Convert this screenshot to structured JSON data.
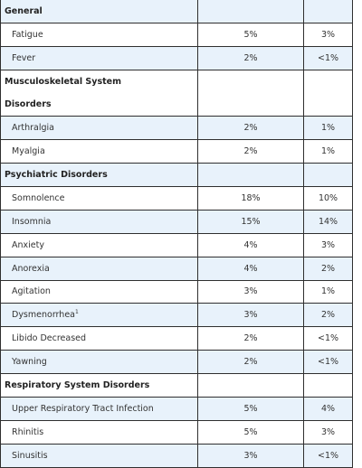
{
  "table": {
    "rows": [
      {
        "type": "section",
        "label": "General",
        "alt": true
      },
      {
        "type": "item",
        "label": "Fatigue",
        "drug": "5%",
        "placebo": "3%",
        "alt": false
      },
      {
        "type": "item",
        "label": "Fever",
        "drug": "2%",
        "placebo": "<1%",
        "alt": true
      },
      {
        "type": "section",
        "label": "Musculoskeletal System Disorders",
        "alt": false,
        "tall": true
      },
      {
        "type": "item",
        "label": "Arthralgia",
        "drug": "2%",
        "placebo": "1%",
        "alt": true
      },
      {
        "type": "item",
        "label": "Myalgia",
        "drug": "2%",
        "placebo": "1%",
        "alt": false
      },
      {
        "type": "section",
        "label": "Psychiatric Disorders",
        "alt": true
      },
      {
        "type": "item",
        "label": "Somnolence",
        "drug": "18%",
        "placebo": "10%",
        "alt": false
      },
      {
        "type": "item",
        "label": "Insomnia",
        "drug": "15%",
        "placebo": "14%",
        "alt": true
      },
      {
        "type": "item",
        "label": "Anxiety",
        "drug": "4%",
        "placebo": "3%",
        "alt": false
      },
      {
        "type": "item",
        "label": "Anorexia",
        "drug": "4%",
        "placebo": "2%",
        "alt": true
      },
      {
        "type": "item",
        "label": "Agitation",
        "drug": "3%",
        "placebo": "1%",
        "alt": false
      },
      {
        "type": "item",
        "label": "Dysmenorrhea",
        "sup": "1",
        "drug": "3%",
        "placebo": "2%",
        "alt": true
      },
      {
        "type": "item",
        "label": "Libido Decreased",
        "drug": "2%",
        "placebo": "<1%",
        "alt": false
      },
      {
        "type": "item",
        "label": "Yawning",
        "drug": "2%",
        "placebo": "<1%",
        "alt": true
      },
      {
        "type": "section",
        "label": "Respiratory System Disorders",
        "alt": false
      },
      {
        "type": "item",
        "label": "Upper Respiratory Tract Infection",
        "drug": "5%",
        "placebo": "4%",
        "alt": true
      },
      {
        "type": "item",
        "label": "Rhinitis",
        "drug": "5%",
        "placebo": "3%",
        "alt": false
      },
      {
        "type": "item",
        "label": "Sinusitis",
        "drug": "3%",
        "placebo": "<1%",
        "alt": true
      }
    ]
  }
}
